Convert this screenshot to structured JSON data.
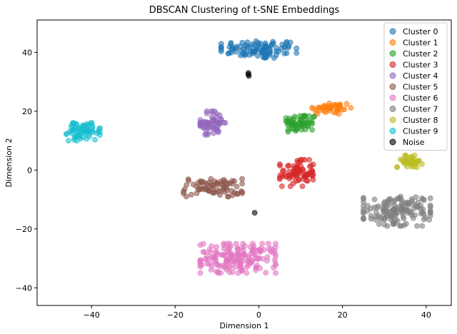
{
  "chart_data": {
    "type": "scatter",
    "title": "DBSCAN Clustering of t-SNE Embeddings",
    "xlabel": "Dimension 1",
    "ylabel": "Dimension 2",
    "xlim": [
      -53,
      46
    ],
    "ylim": [
      -46,
      51
    ],
    "xticks": [
      -40,
      -20,
      0,
      20,
      40
    ],
    "yticks": [
      -40,
      -20,
      0,
      20,
      40
    ],
    "grid": false,
    "legend_position": "top-right",
    "point_alpha": 0.6,
    "series": [
      {
        "name": "Cluster 0",
        "color": "#1f77b4",
        "center": [
          0,
          41
        ],
        "spread": [
          9,
          3
        ],
        "count": 100
      },
      {
        "name": "Cluster 1",
        "color": "#ff7f0e",
        "center": [
          17,
          21
        ],
        "spread": [
          5,
          2
        ],
        "count": 45
      },
      {
        "name": "Cluster 2",
        "color": "#2ca02c",
        "center": [
          10,
          16
        ],
        "spread": [
          3.5,
          3
        ],
        "count": 55
      },
      {
        "name": "Cluster 3",
        "color": "#d62728",
        "center": [
          9,
          -1
        ],
        "spread": [
          4,
          4.5
        ],
        "count": 75
      },
      {
        "name": "Cluster 4",
        "color": "#9467bd",
        "center": [
          -11,
          16
        ],
        "spread": [
          3,
          4
        ],
        "count": 60
      },
      {
        "name": "Cluster 5",
        "color": "#8c564b",
        "center": [
          -11,
          -6
        ],
        "spread": [
          7,
          3
        ],
        "count": 75
      },
      {
        "name": "Cluster 6",
        "color": "#e377c2",
        "center": [
          -5,
          -30
        ],
        "spread": [
          9,
          5
        ],
        "count": 170
      },
      {
        "name": "Cluster 7",
        "color": "#7f7f7f",
        "center": [
          33,
          -14
        ],
        "spread": [
          8,
          5
        ],
        "count": 140
      },
      {
        "name": "Cluster 8",
        "color": "#bcbd22",
        "center": [
          36,
          3
        ],
        "spread": [
          3,
          2
        ],
        "count": 40
      },
      {
        "name": "Cluster 9",
        "color": "#17becf",
        "center": [
          -42,
          13
        ],
        "spread": [
          4,
          3
        ],
        "count": 65
      },
      {
        "name": "Noise",
        "color": "#000000",
        "points": [
          [
            -2.5,
            33
          ],
          [
            -2.5,
            32.5
          ],
          [
            -2.4,
            32
          ],
          [
            -1,
            -14.5
          ]
        ]
      }
    ]
  }
}
